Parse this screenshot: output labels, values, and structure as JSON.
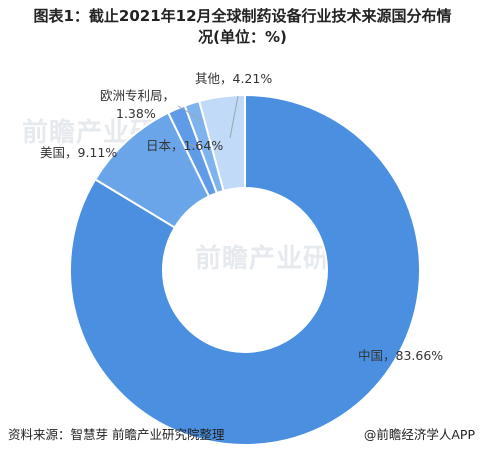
{
  "title": {
    "line1": "图表1：截止2021年12月全球制药设备行业技术来源国分布情",
    "line2": "况(单位：%)"
  },
  "chart_data": {
    "type": "pie",
    "variant": "donut",
    "start_angle_deg": 0,
    "categories": [
      "中国",
      "美国",
      "日本",
      "欧洲专利局",
      "其他"
    ],
    "values": [
      83.66,
      9.11,
      1.64,
      1.38,
      4.21
    ],
    "labels": [
      "中国，83.66%",
      "美国，9.11%",
      "日本，1.64%",
      "欧洲专利局，|1.38%",
      "其他，4.21%"
    ],
    "colors": [
      "#4a8fe0",
      "#6aa5ea",
      "#5f9be6",
      "#7fb3ee",
      "#c0daf7"
    ]
  },
  "watermark": {
    "brand": "前瞻产业研究院"
  },
  "footer": {
    "source": "资料来源：智慧芽 前瞻产业研究院整理",
    "brand": "@前瞻经济学人APP"
  }
}
